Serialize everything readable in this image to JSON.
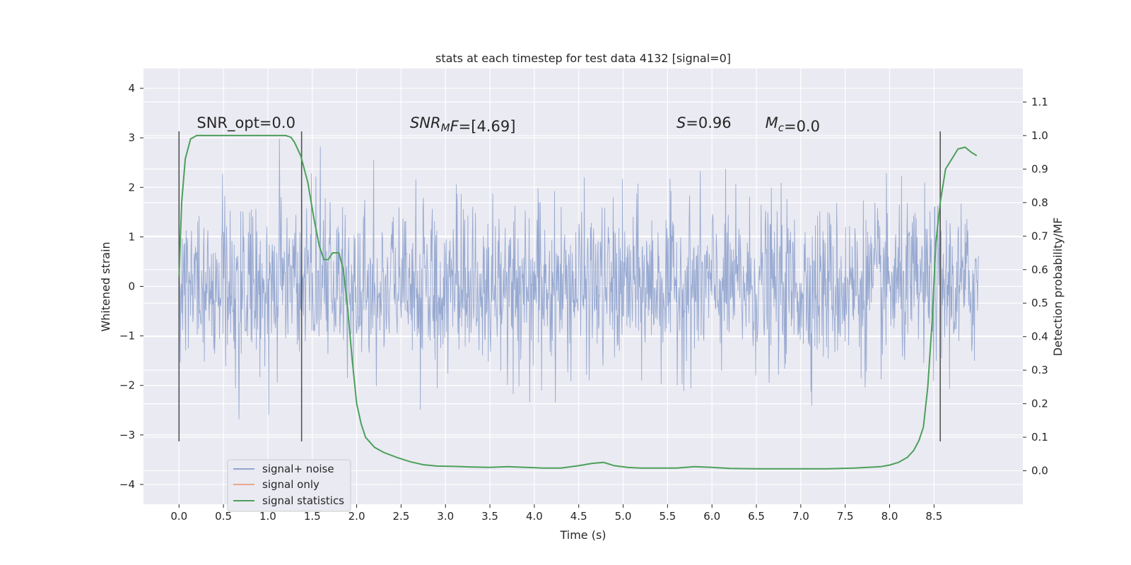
{
  "chart_data": {
    "type": "line",
    "title": "stats at each timestep for test data 4132 [signal=0]",
    "xlabel": "Time (s)",
    "ylabel": "Whitened strain",
    "y2label": "Detection probability/MF",
    "xlim": [
      -0.4,
      9.5
    ],
    "ylim": [
      -4.4,
      4.4
    ],
    "y2lim": [
      -0.1,
      1.2
    ],
    "x_ticks": [
      0.0,
      0.5,
      1.0,
      1.5,
      2.0,
      2.5,
      3.0,
      3.5,
      4.0,
      4.5,
      5.0,
      5.5,
      6.0,
      6.5,
      7.0,
      7.5,
      8.0,
      8.5
    ],
    "x_tick_labels": [
      "0.0",
      "0.5",
      "1.0",
      "1.5",
      "2.0",
      "2.5",
      "3.0",
      "3.5",
      "4.0",
      "4.5",
      "5.0",
      "5.5",
      "6.0",
      "6.5",
      "7.0",
      "7.5",
      "8.0",
      "8.5"
    ],
    "y_ticks": [
      4,
      3,
      2,
      1,
      0,
      -1,
      -2,
      -3,
      -4
    ],
    "y_tick_labels": [
      "4",
      "3",
      "2",
      "1",
      "0",
      "−1",
      "−2",
      "−3",
      "−4"
    ],
    "y2_ticks": [
      1.1,
      1.0,
      0.9,
      0.8,
      0.7,
      0.6,
      0.5,
      0.4,
      0.3,
      0.2,
      0.1,
      0.0
    ],
    "y2_tick_labels": [
      "1.1",
      "1.0",
      "0.9",
      "0.8",
      "0.7",
      "0.6",
      "0.5",
      "0.4",
      "0.3",
      "0.2",
      "0.1",
      "0.0"
    ],
    "grid": true,
    "legend_position": "lower-left",
    "series": [
      {
        "name": "signal+ noise",
        "color": "#92a5cf",
        "axis": "left",
        "description_type": "noise",
        "x_range": [
          0.0,
          9.0
        ],
        "envelope": [
          -3.3,
          4.0
        ]
      },
      {
        "name": "signal only",
        "color": "#e8a98c",
        "axis": "left",
        "x": [],
        "y": []
      },
      {
        "name": "signal statistics",
        "color": "#4ca05a",
        "axis": "right",
        "x": [
          0.0,
          0.03,
          0.07,
          0.13,
          0.2,
          0.4,
          0.6,
          0.8,
          1.0,
          1.2,
          1.26,
          1.3,
          1.37,
          1.45,
          1.52,
          1.58,
          1.63,
          1.68,
          1.73,
          1.8,
          1.85,
          1.9,
          1.95,
          2.0,
          2.05,
          2.1,
          2.2,
          2.3,
          2.45,
          2.6,
          2.75,
          2.9,
          3.1,
          3.3,
          3.5,
          3.7,
          3.9,
          4.1,
          4.3,
          4.5,
          4.65,
          4.78,
          4.9,
          5.05,
          5.2,
          5.4,
          5.6,
          5.8,
          6.0,
          6.2,
          6.5,
          6.8,
          7.0,
          7.3,
          7.6,
          7.9,
          8.0,
          8.1,
          8.2,
          8.27,
          8.33,
          8.38,
          8.43,
          8.48,
          8.52,
          8.57,
          8.63,
          8.7,
          8.77,
          8.85,
          8.92,
          8.98
        ],
        "y": [
          0.58,
          0.8,
          0.93,
          0.99,
          1.0,
          1.0,
          1.0,
          1.0,
          1.0,
          1.0,
          0.995,
          0.98,
          0.94,
          0.86,
          0.75,
          0.67,
          0.63,
          0.63,
          0.65,
          0.65,
          0.6,
          0.48,
          0.33,
          0.2,
          0.14,
          0.1,
          0.07,
          0.055,
          0.04,
          0.027,
          0.018,
          0.014,
          0.013,
          0.011,
          0.01,
          0.012,
          0.01,
          0.008,
          0.008,
          0.015,
          0.022,
          0.025,
          0.015,
          0.01,
          0.008,
          0.008,
          0.008,
          0.012,
          0.01,
          0.007,
          0.006,
          0.006,
          0.006,
          0.006,
          0.008,
          0.012,
          0.017,
          0.025,
          0.04,
          0.06,
          0.09,
          0.13,
          0.25,
          0.45,
          0.68,
          0.8,
          0.9,
          0.93,
          0.96,
          0.965,
          0.95,
          0.94
        ]
      }
    ],
    "vertical_lines": [
      0.0,
      1.38,
      8.57
    ],
    "vertical_line_range": [
      -3.13,
      3.13
    ],
    "annotations": [
      {
        "segments": [
          {
            "text": "SNR_opt=0.0",
            "italic": false
          }
        ],
        "x": 0.2,
        "y": 3.2
      },
      {
        "segments": [
          {
            "text": "SNR",
            "italic": true
          },
          {
            "text": "M",
            "italic": true,
            "sub": true
          },
          {
            "text": "F",
            "italic": true
          },
          {
            "text": "=[4.69]",
            "italic": false
          }
        ],
        "x": 2.6,
        "y": 3.2
      },
      {
        "segments": [
          {
            "text": "S",
            "italic": true
          },
          {
            "text": "=0.96",
            "italic": false
          }
        ],
        "x": 5.6,
        "y": 3.2
      },
      {
        "segments": [
          {
            "text": "M",
            "italic": true
          },
          {
            "text": "c",
            "italic": true,
            "sub": true
          },
          {
            "text": "=0.0",
            "italic": false
          }
        ],
        "x": 6.6,
        "y": 3.2
      }
    ]
  }
}
